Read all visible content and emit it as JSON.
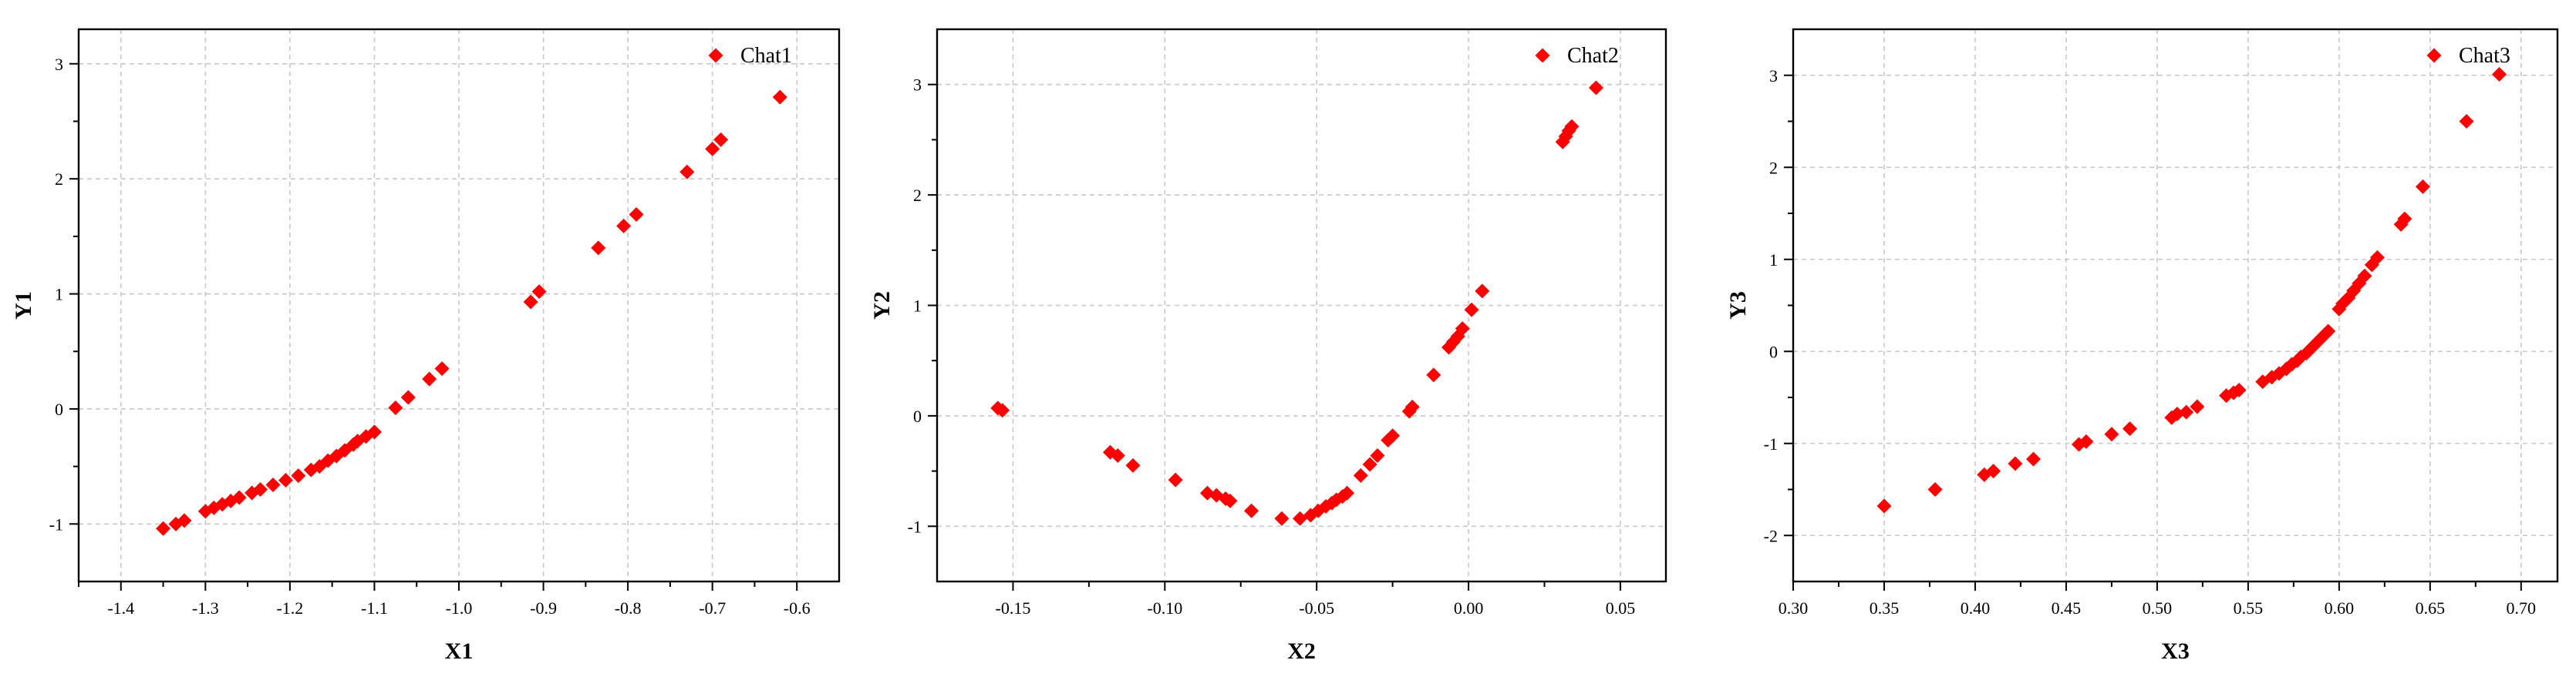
{
  "chart_data": [
    {
      "type": "scatter",
      "xlabel": "X1",
      "ylabel": "Y1",
      "xlim": [
        -1.45,
        -0.55
      ],
      "ylim": [
        -1.5,
        3.3
      ],
      "xticks": [
        -1.4,
        -1.3,
        -1.2,
        -1.1,
        -1.0,
        -0.9,
        -0.8,
        -0.7,
        -0.6
      ],
      "xtick_labels": [
        "-1.4",
        "-1.3",
        "-1.2",
        "-1.1",
        "-1.0",
        "-0.9",
        "-0.8",
        "-0.7",
        "-0.6"
      ],
      "yticks": [
        -1,
        0,
        1,
        2,
        3
      ],
      "ytick_labels": [
        "-1",
        "0",
        "1",
        "2",
        "3"
      ],
      "grid": true,
      "legend_position": "top-right",
      "series": [
        {
          "name": "Chat1",
          "color": "#ff0000",
          "marker": "diamond",
          "x": [
            -1.35,
            -1.335,
            -1.325,
            -1.3,
            -1.29,
            -1.28,
            -1.27,
            -1.26,
            -1.245,
            -1.235,
            -1.22,
            -1.205,
            -1.19,
            -1.175,
            -1.165,
            -1.155,
            -1.145,
            -1.135,
            -1.125,
            -1.12,
            -1.11,
            -1.1,
            -1.075,
            -1.06,
            -1.035,
            -1.02,
            -0.915,
            -0.905,
            -0.835,
            -0.805,
            -0.79,
            -0.73,
            -0.7,
            -0.69,
            -0.62
          ],
          "y": [
            -1.04,
            -1.0,
            -0.97,
            -0.89,
            -0.86,
            -0.83,
            -0.8,
            -0.77,
            -0.73,
            -0.7,
            -0.66,
            -0.62,
            -0.58,
            -0.53,
            -0.5,
            -0.45,
            -0.41,
            -0.36,
            -0.31,
            -0.28,
            -0.24,
            -0.2,
            0.01,
            0.1,
            0.26,
            0.35,
            0.93,
            1.02,
            1.4,
            1.59,
            1.69,
            2.06,
            2.26,
            2.34,
            2.71
          ]
        }
      ]
    },
    {
      "type": "scatter",
      "xlabel": "X2",
      "ylabel": "Y2",
      "xlim": [
        -0.175,
        0.065
      ],
      "ylim": [
        -1.5,
        3.5
      ],
      "xticks": [
        -0.15,
        -0.1,
        -0.05,
        0.0,
        0.05
      ],
      "xtick_labels": [
        "-0.15",
        "-0.10",
        "-0.05",
        "0.00",
        "0.05"
      ],
      "yticks": [
        -1,
        0,
        1,
        2,
        3
      ],
      "ytick_labels": [
        "-1",
        "0",
        "1",
        "2",
        "3"
      ],
      "grid": true,
      "legend_position": "top-right",
      "series": [
        {
          "name": "Chat2",
          "color": "#ff0000",
          "marker": "diamond",
          "x": [
            -0.155,
            -0.1535,
            -0.118,
            -0.1155,
            -0.1105,
            -0.0965,
            -0.086,
            -0.083,
            -0.08,
            -0.0785,
            -0.0715,
            -0.0615,
            -0.0555,
            -0.052,
            -0.0495,
            -0.047,
            -0.045,
            -0.0435,
            -0.0415,
            -0.04,
            -0.0355,
            -0.0325,
            -0.03,
            -0.0265,
            -0.025,
            -0.0195,
            -0.0185,
            -0.0115,
            -0.0065,
            -0.005,
            -0.0035,
            -0.002,
            0.001,
            0.0045,
            0.031,
            0.032,
            0.033,
            0.034,
            0.042
          ],
          "y": [
            0.07,
            0.05,
            -0.33,
            -0.36,
            -0.45,
            -0.58,
            -0.7,
            -0.72,
            -0.75,
            -0.77,
            -0.86,
            -0.93,
            -0.93,
            -0.9,
            -0.86,
            -0.82,
            -0.79,
            -0.76,
            -0.73,
            -0.7,
            -0.54,
            -0.44,
            -0.36,
            -0.22,
            -0.18,
            0.04,
            0.08,
            0.37,
            0.62,
            0.67,
            0.72,
            0.79,
            0.96,
            1.13,
            2.48,
            2.53,
            2.58,
            2.62,
            2.97
          ]
        }
      ]
    },
    {
      "type": "scatter",
      "xlabel": "X3",
      "ylabel": "Y3",
      "xlim": [
        0.3,
        0.72
      ],
      "ylim": [
        -2.5,
        3.5
      ],
      "xticks": [
        0.3,
        0.35,
        0.4,
        0.45,
        0.5,
        0.55,
        0.6,
        0.65,
        0.7
      ],
      "xtick_labels": [
        "0.30",
        "0.35",
        "0.40",
        "0.45",
        "0.50",
        "0.55",
        "0.60",
        "0.65",
        "0.70"
      ],
      "yticks": [
        -2,
        -1,
        0,
        1,
        2,
        3
      ],
      "ytick_labels": [
        "-2",
        "-1",
        "0",
        "1",
        "2",
        "3"
      ],
      "grid": true,
      "legend_position": "top-right",
      "series": [
        {
          "name": "Chat3",
          "color": "#ff0000",
          "marker": "diamond",
          "x": [
            0.35,
            0.378,
            0.405,
            0.41,
            0.422,
            0.432,
            0.457,
            0.461,
            0.475,
            0.485,
            0.508,
            0.511,
            0.516,
            0.522,
            0.538,
            0.542,
            0.545,
            0.558,
            0.563,
            0.567,
            0.571,
            0.574,
            0.577,
            0.579,
            0.582,
            0.584,
            0.586,
            0.588,
            0.59,
            0.592,
            0.594,
            0.6,
            0.602,
            0.605,
            0.608,
            0.611,
            0.614,
            0.618,
            0.621,
            0.634,
            0.636,
            0.646,
            0.67,
            0.688
          ],
          "y": [
            -1.68,
            -1.5,
            -1.34,
            -1.3,
            -1.22,
            -1.17,
            -1.01,
            -0.98,
            -0.9,
            -0.84,
            -0.72,
            -0.68,
            -0.66,
            -0.6,
            -0.48,
            -0.45,
            -0.42,
            -0.33,
            -0.28,
            -0.24,
            -0.19,
            -0.14,
            -0.1,
            -0.06,
            -0.02,
            0.02,
            0.06,
            0.1,
            0.14,
            0.18,
            0.22,
            0.46,
            0.52,
            0.58,
            0.66,
            0.74,
            0.82,
            0.94,
            1.02,
            1.38,
            1.44,
            1.79,
            2.5,
            3.01
          ]
        }
      ]
    }
  ]
}
